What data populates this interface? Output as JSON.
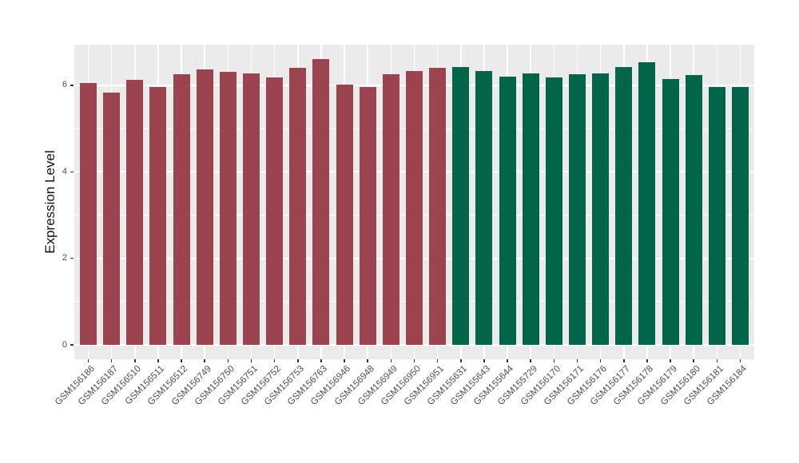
{
  "figure": {
    "background": "#FFFFFF",
    "panel_background": "#EBEBEB",
    "grid_color": "#FFFFFF",
    "tick_mark_color": "#333333",
    "tick_label_color": "#4D4D4D",
    "axis_title_color": "#111111"
  },
  "chart_data": {
    "type": "bar",
    "title": "",
    "xlabel": "",
    "ylabel": "Expression Level",
    "ylim": [
      -0.33,
      6.94
    ],
    "yticks": [
      0,
      2,
      4,
      6
    ],
    "y_minor_ticks": [
      1,
      3,
      5
    ],
    "grid": true,
    "legend_position": "none",
    "group_colors": {
      "group1": "#9B4450",
      "group2": "#016549"
    },
    "bars": [
      {
        "label": "GSM156186",
        "value": 6.05,
        "group": "group1"
      },
      {
        "label": "GSM156187",
        "value": 5.83,
        "group": "group1"
      },
      {
        "label": "GSM156510",
        "value": 6.13,
        "group": "group1"
      },
      {
        "label": "GSM156511",
        "value": 5.97,
        "group": "group1"
      },
      {
        "label": "GSM156512",
        "value": 6.25,
        "group": "group1"
      },
      {
        "label": "GSM156749",
        "value": 6.37,
        "group": "group1"
      },
      {
        "label": "GSM156750",
        "value": 6.31,
        "group": "group1"
      },
      {
        "label": "GSM156751",
        "value": 6.28,
        "group": "group1"
      },
      {
        "label": "GSM156752",
        "value": 6.19,
        "group": "group1"
      },
      {
        "label": "GSM156753",
        "value": 6.4,
        "group": "group1"
      },
      {
        "label": "GSM156763",
        "value": 6.6,
        "group": "group1"
      },
      {
        "label": "GSM156946",
        "value": 6.02,
        "group": "group1"
      },
      {
        "label": "GSM156948",
        "value": 5.97,
        "group": "group1"
      },
      {
        "label": "GSM156949",
        "value": 6.25,
        "group": "group1"
      },
      {
        "label": "GSM156950",
        "value": 6.33,
        "group": "group1"
      },
      {
        "label": "GSM156951",
        "value": 6.41,
        "group": "group1"
      },
      {
        "label": "GSM155631",
        "value": 6.43,
        "group": "group2"
      },
      {
        "label": "GSM155643",
        "value": 6.33,
        "group": "group2"
      },
      {
        "label": "GSM155644",
        "value": 6.21,
        "group": "group2"
      },
      {
        "label": "GSM155729",
        "value": 6.28,
        "group": "group2"
      },
      {
        "label": "GSM156170",
        "value": 6.19,
        "group": "group2"
      },
      {
        "label": "GSM156171",
        "value": 6.25,
        "group": "group2"
      },
      {
        "label": "GSM156176",
        "value": 6.28,
        "group": "group2"
      },
      {
        "label": "GSM156177",
        "value": 6.43,
        "group": "group2"
      },
      {
        "label": "GSM156178",
        "value": 6.54,
        "group": "group2"
      },
      {
        "label": "GSM156179",
        "value": 6.15,
        "group": "group2"
      },
      {
        "label": "GSM156180",
        "value": 6.24,
        "group": "group2"
      },
      {
        "label": "GSM156181",
        "value": 5.97,
        "group": "group2"
      },
      {
        "label": "GSM156184",
        "value": 5.97,
        "group": "group2"
      }
    ]
  }
}
